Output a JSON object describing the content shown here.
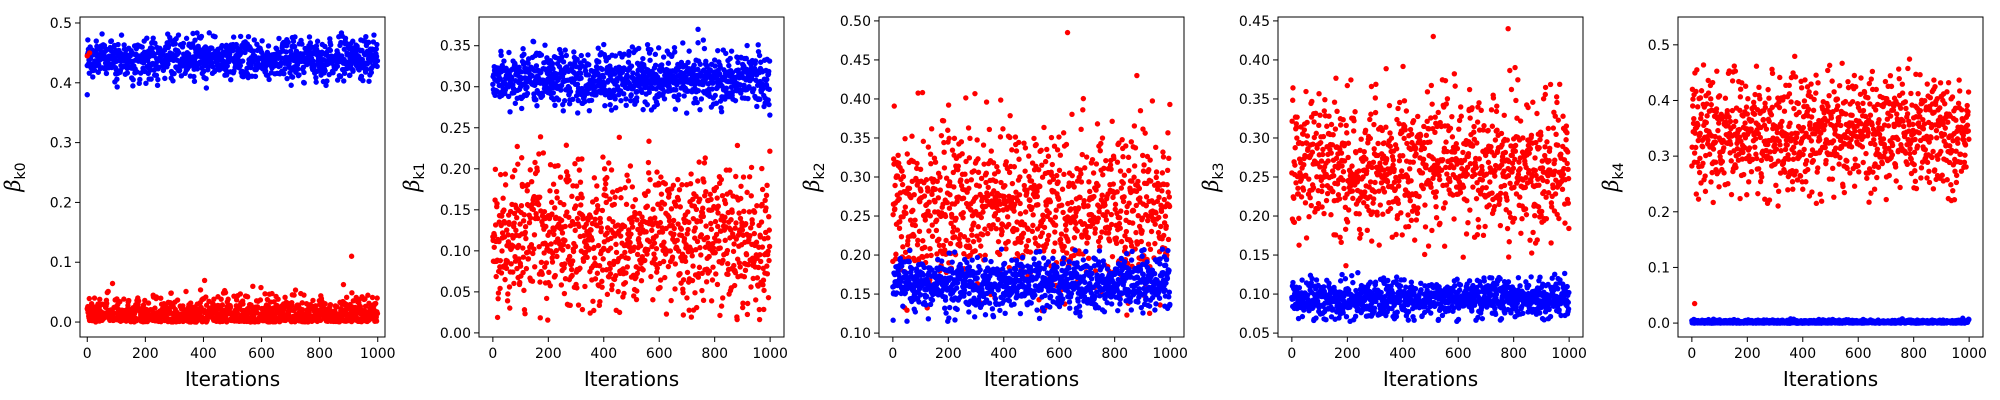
{
  "chart_data": [
    {
      "type": "scatter",
      "xlabel": "Iterations",
      "ylabel": {
        "symbol": "β",
        "subscript": "k0"
      },
      "xlim": [
        -25,
        1025
      ],
      "ylim": [
        -0.025,
        0.51
      ],
      "xticks": [
        "0",
        "200",
        "400",
        "600",
        "800",
        "1000"
      ],
      "yticks": [
        "0.0",
        "0.1",
        "0.2",
        "0.3",
        "0.4",
        "0.5"
      ],
      "series": [
        {
          "color": "#0000ff",
          "center": 0.44,
          "spread": 0.017,
          "clip": [
            0.38,
            0.485
          ],
          "outliers": [
            [
              0,
              0.38
            ]
          ]
        },
        {
          "color": "#ff0000",
          "center": 0.0,
          "spread": 0.02,
          "clip": [
            0.0,
            0.075
          ],
          "half": true,
          "outliers": [
            [
              910,
              0.11
            ],
            [
              0,
              0.445
            ],
            [
              8,
              0.45
            ]
          ]
        }
      ]
    },
    {
      "type": "scatter",
      "xlabel": "Iterations",
      "ylabel": {
        "symbol": "β",
        "subscript": "k1"
      },
      "xlim": [
        -50,
        1050
      ],
      "ylim": [
        -0.005,
        0.385
      ],
      "xticks": [
        "0",
        "200",
        "400",
        "600",
        "800",
        "1000"
      ],
      "yticks": [
        "0.00",
        "0.05",
        "0.10",
        "0.15",
        "0.20",
        "0.25",
        "0.30",
        "0.35"
      ],
      "series": [
        {
          "color": "#0000ff",
          "center": 0.31,
          "spread": 0.017,
          "clip": [
            0.265,
            0.358
          ],
          "outliers": [
            [
              740,
              0.37
            ]
          ]
        },
        {
          "color": "#ff0000",
          "center": 0.115,
          "spread": 0.045,
          "clip": [
            0.015,
            0.27
          ],
          "outliers": []
        }
      ]
    },
    {
      "type": "scatter",
      "xlabel": "Iterations",
      "ylabel": {
        "symbol": "β",
        "subscript": "k2"
      },
      "xlim": [
        -50,
        1050
      ],
      "ylim": [
        0.095,
        0.505
      ],
      "xticks": [
        "0",
        "200",
        "400",
        "600",
        "800",
        "1000"
      ],
      "yticks": [
        "0.10",
        "0.15",
        "0.20",
        "0.25",
        "0.30",
        "0.35",
        "0.40",
        "0.45",
        "0.50"
      ],
      "series": [
        {
          "color": "#ff0000",
          "center": 0.26,
          "spread": 0.05,
          "clip": [
            0.12,
            0.41
          ],
          "outliers": [
            [
              630,
              0.485
            ],
            [
              880,
              0.43
            ]
          ]
        },
        {
          "color": "#0000ff",
          "center": 0.163,
          "spread": 0.017,
          "clip": [
            0.115,
            0.21
          ],
          "outliers": []
        }
      ]
    },
    {
      "type": "scatter",
      "xlabel": "Iterations",
      "ylabel": {
        "symbol": "β",
        "subscript": "k3"
      },
      "xlim": [
        -50,
        1050
      ],
      "ylim": [
        0.045,
        0.455
      ],
      "xticks": [
        "0",
        "200",
        "400",
        "600",
        "800",
        "1000"
      ],
      "yticks": [
        "0.05",
        "0.10",
        "0.15",
        "0.20",
        "0.25",
        "0.30",
        "0.35",
        "0.40",
        "0.45"
      ],
      "series": [
        {
          "color": "#ff0000",
          "center": 0.265,
          "spread": 0.045,
          "clip": [
            0.13,
            0.41
          ],
          "outliers": [
            [
              780,
              0.44
            ],
            [
              510,
              0.43
            ]
          ]
        },
        {
          "color": "#0000ff",
          "center": 0.094,
          "spread": 0.012,
          "clip": [
            0.065,
            0.128
          ],
          "outliers": []
        }
      ]
    },
    {
      "type": "scatter",
      "xlabel": "Iterations",
      "ylabel": {
        "symbol": "β",
        "subscript": "k4"
      },
      "xlim": [
        -50,
        1050
      ],
      "ylim": [
        -0.025,
        0.55
      ],
      "xticks": [
        "0",
        "200",
        "400",
        "600",
        "800",
        "1000"
      ],
      "yticks": [
        "0.0",
        "0.1",
        "0.2",
        "0.3",
        "0.4",
        "0.5"
      ],
      "series": [
        {
          "color": "#ff0000",
          "center": 0.34,
          "spread": 0.055,
          "clip": [
            0.21,
            0.52
          ],
          "outliers": [
            [
              10,
              0.035
            ]
          ]
        },
        {
          "color": "#0000ff",
          "center": 0.002,
          "spread": 0.002,
          "clip": [
            0.0,
            0.012
          ],
          "outliers": []
        }
      ]
    }
  ]
}
